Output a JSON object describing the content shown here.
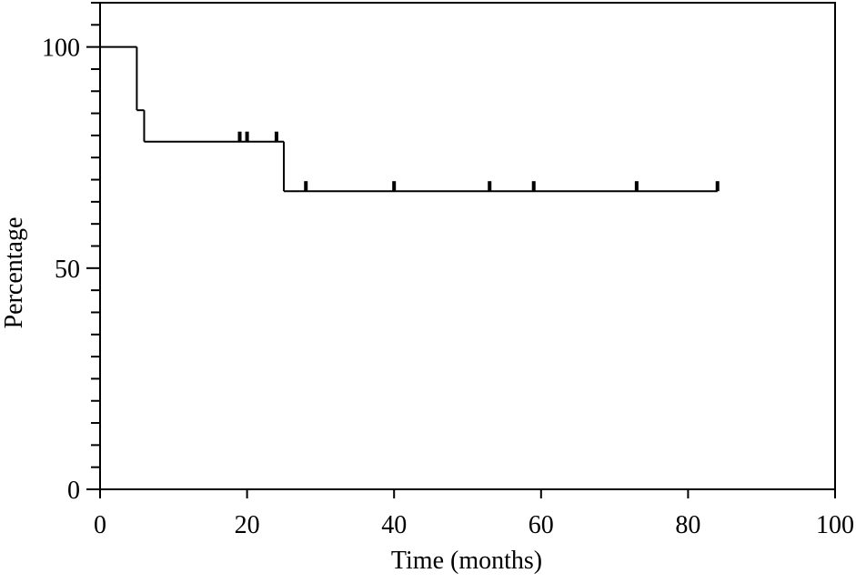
{
  "chart_data": {
    "type": "step",
    "x_label": "Time (months)",
    "y_label": "Percentage",
    "x": [
      0,
      5,
      6,
      25,
      84
    ],
    "values": [
      100,
      85.7,
      78.6,
      67.4,
      67.4
    ],
    "censored": {
      "x": [
        19,
        20,
        24,
        28,
        40,
        53,
        59,
        73,
        84
      ],
      "values": [
        78.6,
        78.6,
        78.6,
        67.4,
        67.4,
        67.4,
        67.4,
        67.4,
        67.4
      ]
    },
    "color": "#000000",
    "xlim": [
      0,
      100
    ],
    "xticks": [
      0,
      20,
      40,
      60,
      80,
      100
    ],
    "ylim": [
      0,
      110
    ],
    "yticks": [
      0,
      50,
      100
    ],
    "yticks_minor": [
      5,
      10,
      15,
      20,
      25,
      30,
      35,
      40,
      45,
      55,
      60,
      65,
      70,
      75,
      80,
      85,
      90,
      95,
      105,
      110
    ]
  }
}
